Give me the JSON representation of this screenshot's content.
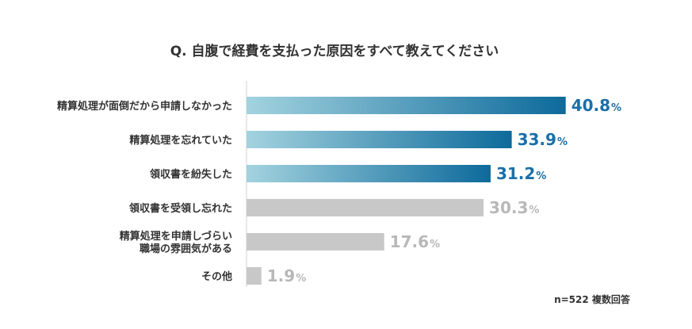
{
  "chart_data": {
    "type": "bar",
    "orientation": "horizontal",
    "title": "Q. 自腹で経費を支払った原因をすべて教えてください",
    "categories": [
      [
        "精算処理が面倒だから申請しなかった"
      ],
      [
        "精算処理を忘れていた"
      ],
      [
        "領収書を紛失した"
      ],
      [
        "領収書を受領し忘れた"
      ],
      [
        "精算処理を申請しづらい",
        "職場の雰囲気がある"
      ],
      [
        "その他"
      ]
    ],
    "values": [
      40.8,
      33.9,
      31.2,
      30.3,
      17.6,
      1.9
    ],
    "value_labels": [
      "40.8",
      "33.9",
      "31.2",
      "30.3",
      "17.6",
      "1.9"
    ],
    "unit": "%",
    "highlighted": [
      true,
      true,
      true,
      false,
      false,
      false
    ],
    "xlim": [
      0,
      50
    ],
    "grid": false,
    "legend": "none",
    "note": "n=522 複数回答",
    "colors": {
      "highlight_start": "#a3d3df",
      "highlight_end": "#0d6a9b",
      "highlight_text": "#1a6fa8",
      "muted_bar": "#c8c8c8",
      "muted_text": "#b8b8b8",
      "axis": "#d0d0d0",
      "text": "#333333"
    }
  }
}
